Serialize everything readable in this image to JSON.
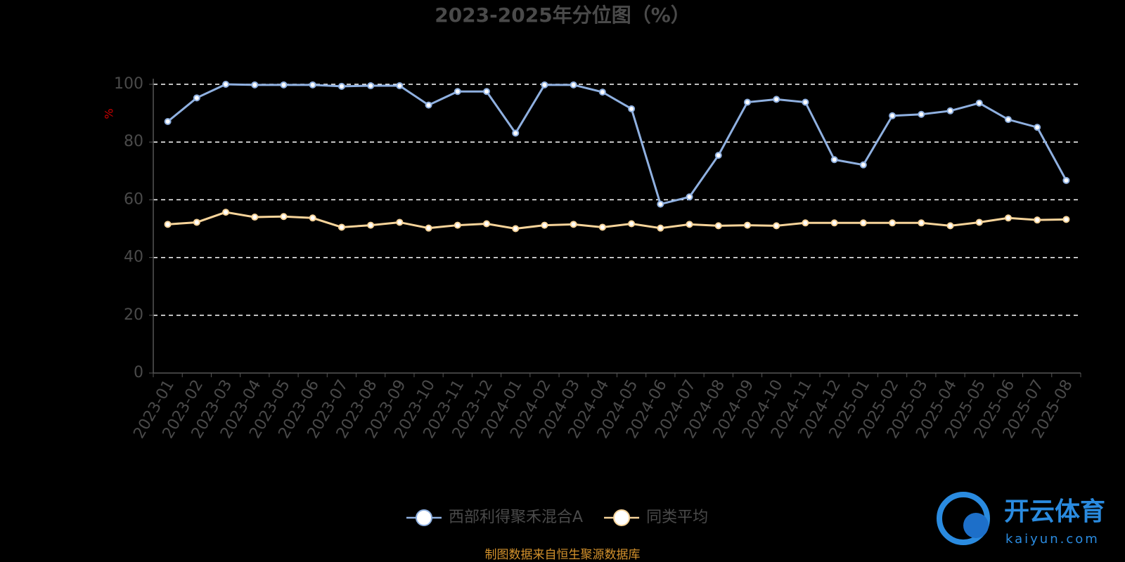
{
  "chart_data": {
    "type": "line",
    "title": "2023-2025年分位图（%）",
    "y_label": "%",
    "categories": [
      "2023-01",
      "2023-02",
      "2023-03",
      "2023-04",
      "2023-05",
      "2023-06",
      "2023-07",
      "2023-08",
      "2023-09",
      "2023-10",
      "2023-11",
      "2023-12",
      "2024-01",
      "2024-02",
      "2024-03",
      "2024-04",
      "2024-05",
      "2024-06",
      "2024-07",
      "2024-08",
      "2024-09",
      "2024-10",
      "2024-11",
      "2024-12",
      "2025-01",
      "2025-02",
      "2025-03",
      "2025-04",
      "2025-05",
      "2025-06",
      "2025-07",
      "2025-08"
    ],
    "series": [
      {
        "name": "西部利得聚禾混合A",
        "color": "#8fb0e0",
        "values": [
          87.1,
          95.3,
          100,
          99.8,
          99.8,
          99.8,
          99.3,
          99.5,
          99.5,
          92.8,
          97.5,
          97.5,
          83.1,
          99.8,
          99.8,
          97.3,
          91.5,
          58.5,
          61,
          75.4,
          93.8,
          94.8,
          93.8,
          73.9,
          72.1,
          89.1,
          89.6,
          90.8,
          93.5,
          87.8,
          85.1,
          66.7
        ]
      },
      {
        "name": "同类平均",
        "color": "#f7d49a",
        "values": [
          51.5,
          52.2,
          55.7,
          54,
          54.2,
          53.7,
          50.5,
          51.2,
          52.2,
          50.2,
          51.2,
          51.7,
          50,
          51.2,
          51.5,
          50.5,
          51.7,
          50.2,
          51.5,
          51,
          51.2,
          51,
          52,
          52,
          52,
          52,
          52,
          51,
          52.2,
          53.7,
          53,
          53.2
        ]
      }
    ],
    "ylim": [
      0,
      100
    ],
    "yticks": [
      0,
      20,
      40,
      60,
      80,
      100
    ],
    "grid": true,
    "legend": "bottom",
    "source": "制图数据来自恒生聚源数据库",
    "watermark": {
      "name": "开云体育",
      "site": "kaiyun.com"
    }
  }
}
